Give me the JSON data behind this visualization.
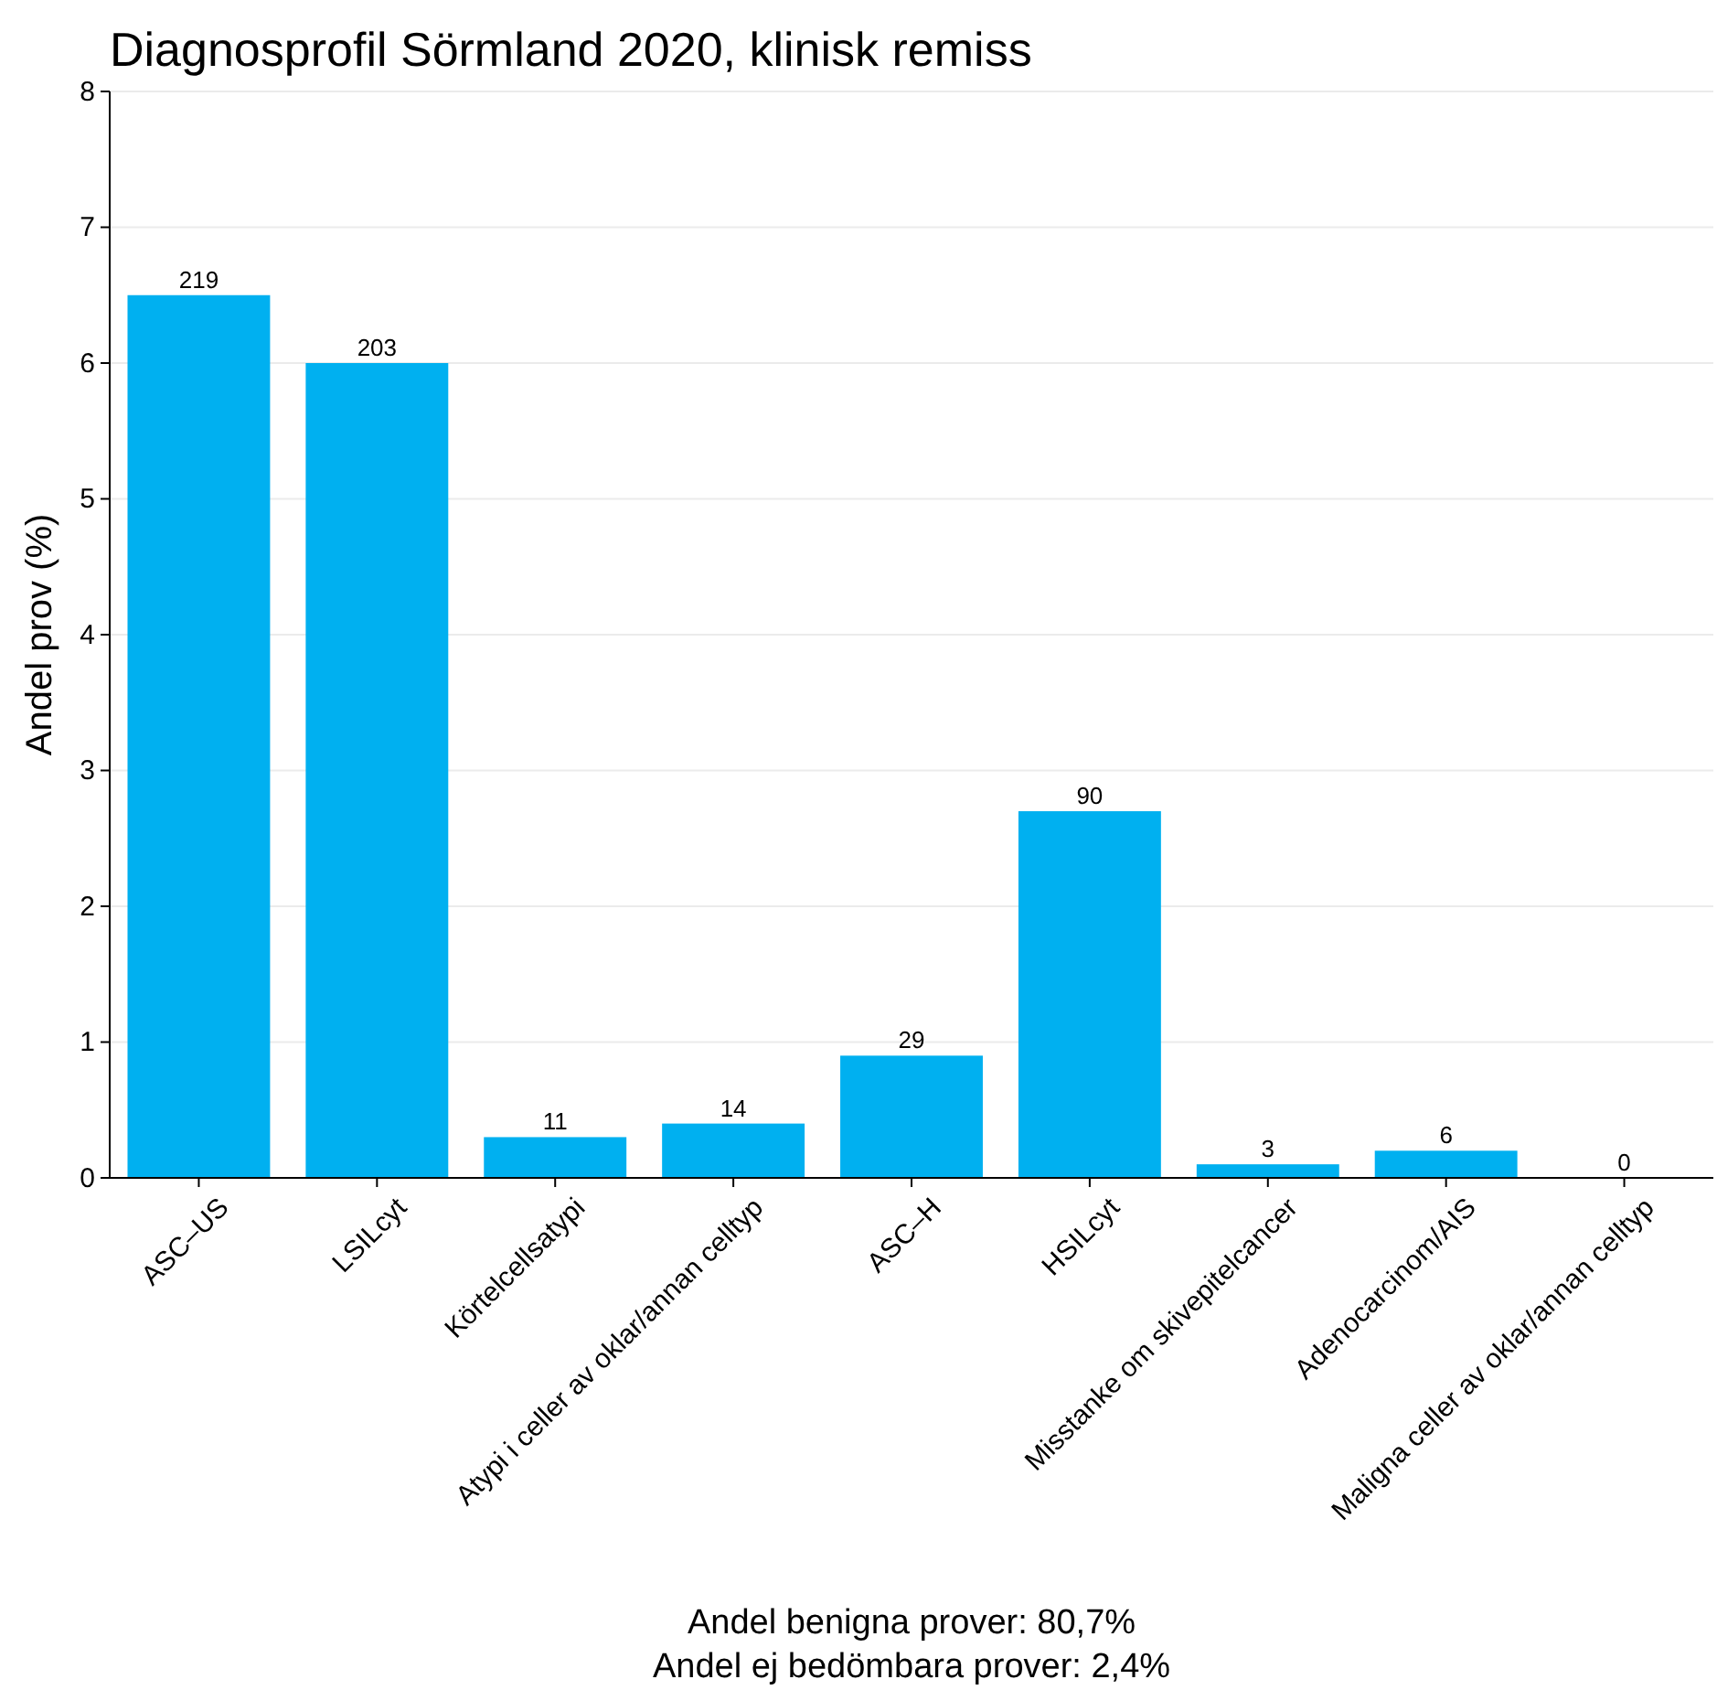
{
  "chart_data": {
    "type": "bar",
    "title": "Diagnosprofil Sörmland 2020, klinisk remiss",
    "ylabel": "Andel prov (%)",
    "categories": [
      "ASC–US",
      "LSILcyt",
      "Körtelcellsatypi",
      "Atypi i celler av oklar/annan celltyp",
      "ASC–H",
      "HSILcyt",
      "Misstanke om skivepitelcancer",
      "Adenocarcinom/AIS",
      "Maligna celler av oklar/annan celltyp"
    ],
    "values": [
      6.5,
      6.0,
      0.3,
      0.4,
      0.9,
      2.7,
      0.1,
      0.2,
      0.0
    ],
    "color": "#00b0f0",
    "ylim": [
      0,
      8
    ],
    "yticks": [
      0,
      1,
      2,
      3,
      4,
      5,
      6,
      7,
      8
    ],
    "grid": "y",
    "annotations": [
      "Andel benigna prover: 80,7%",
      "Andel ej bedömbara prover: 2,4%",
      {
        "text": "219",
        "x": "ASC–US",
        "y": 6.5
      },
      {
        "text": "203",
        "x": "LSILcyt",
        "y": 6.0
      },
      {
        "text": "11",
        "x": "Körtelcellsatypi",
        "y": 0.3
      },
      {
        "text": "14",
        "x": "Atypi i celler av oklar/annan celltyp",
        "y": 0.4
      },
      {
        "text": "29",
        "x": "ASC–H",
        "y": 0.9
      },
      {
        "text": "90",
        "x": "HSILcyt",
        "y": 2.7
      },
      {
        "text": "3",
        "x": "Misstanke om skivepitelcancer",
        "y": 0.1
      },
      {
        "text": "6",
        "x": "Adenocarcinom/AIS",
        "y": 0.2
      },
      {
        "text": "0",
        "x": "Maligna celler av oklar/annan celltyp",
        "y": 0.0
      }
    ]
  }
}
